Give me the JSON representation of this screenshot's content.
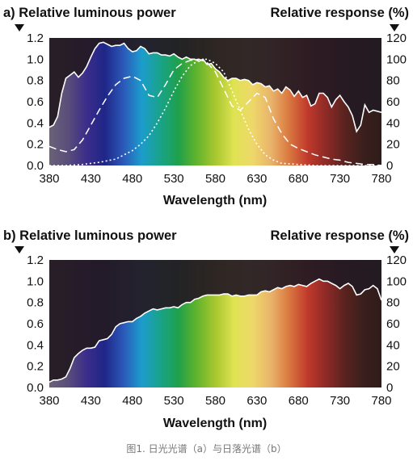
{
  "caption": "图1. 日光光谱（a）与日落光谱（b）",
  "colors": {
    "spectrum": [
      "#6b6278",
      "#5a4e7a",
      "#3c2d8a",
      "#1f2688",
      "#2b58b8",
      "#1c9ccd",
      "#19a38a",
      "#1fa04a",
      "#62b42c",
      "#a8c730",
      "#dfe352",
      "#eed86a",
      "#e9b46a",
      "#d97840",
      "#c0392b",
      "#8e2a27",
      "#5a231f",
      "#3a1f1c",
      "#2e1c1a"
    ],
    "fill_dark": "#231a22",
    "line": "#ffffff"
  },
  "chart_data": [
    {
      "type": "area",
      "panel_label": "a)",
      "title_left": "Relative luminous power",
      "title_right": "Relative response (%)",
      "xlabel": "Wavelength (nm)",
      "xlim": [
        380,
        780
      ],
      "xticks": [
        "380",
        "430",
        "480",
        "530",
        "580",
        "630",
        "680",
        "730",
        "780"
      ],
      "ylim": [
        0,
        1.2
      ],
      "yticks": [
        "0.0",
        "0.2",
        "0.4",
        "0.6",
        "0.8",
        "1.0",
        "1.2"
      ],
      "y2lim": [
        0,
        120
      ],
      "y2ticks": [
        "0",
        "20",
        "40",
        "60",
        "80",
        "100",
        "120"
      ],
      "series": [
        {
          "role": "luminous_power",
          "x": [
            380,
            385,
            390,
            395,
            400,
            405,
            410,
            415,
            420,
            425,
            430,
            435,
            440,
            445,
            450,
            455,
            460,
            465,
            470,
            475,
            480,
            485,
            490,
            495,
            500,
            505,
            510,
            515,
            520,
            525,
            530,
            535,
            540,
            545,
            550,
            555,
            560,
            565,
            570,
            575,
            580,
            585,
            590,
            595,
            600,
            605,
            610,
            615,
            620,
            625,
            630,
            635,
            640,
            645,
            650,
            655,
            660,
            665,
            670,
            675,
            680,
            685,
            690,
            695,
            700,
            705,
            710,
            715,
            720,
            725,
            730,
            735,
            740,
            745,
            750,
            755,
            760,
            765,
            770,
            775,
            780
          ],
          "y": [
            0.36,
            0.38,
            0.46,
            0.68,
            0.82,
            0.85,
            0.88,
            0.83,
            0.87,
            0.93,
            1.02,
            1.1,
            1.15,
            1.16,
            1.14,
            1.12,
            1.13,
            1.13,
            1.15,
            1.1,
            1.07,
            1.08,
            1.12,
            1.1,
            1.05,
            1.06,
            1.06,
            1.04,
            1.04,
            1.03,
            1.05,
            1.02,
            1.0,
            1.02,
            1.0,
            1.0,
            0.98,
            1.0,
            0.95,
            0.96,
            0.91,
            0.88,
            0.83,
            0.8,
            0.82,
            0.82,
            0.8,
            0.81,
            0.8,
            0.76,
            0.78,
            0.77,
            0.74,
            0.75,
            0.7,
            0.72,
            0.68,
            0.74,
            0.71,
            0.65,
            0.7,
            0.64,
            0.66,
            0.56,
            0.58,
            0.68,
            0.68,
            0.64,
            0.55,
            0.62,
            0.66,
            0.6,
            0.55,
            0.47,
            0.32,
            0.38,
            0.57,
            0.5,
            0.52,
            0.51,
            0.5
          ]
        },
        {
          "role": "response_dashed",
          "x": [
            380,
            390,
            400,
            410,
            420,
            430,
            440,
            450,
            460,
            470,
            480,
            490,
            500,
            510,
            520,
            530,
            540,
            550,
            560,
            570,
            580,
            590,
            600,
            610,
            620,
            630,
            640,
            650,
            660,
            670,
            680,
            690,
            700,
            710,
            720,
            730,
            740,
            750,
            760,
            770,
            780
          ],
          "y": [
            18,
            15,
            13,
            15,
            24,
            38,
            52,
            65,
            76,
            82,
            84,
            80,
            66,
            64,
            76,
            90,
            96,
            99,
            100,
            97,
            88,
            72,
            56,
            52,
            60,
            68,
            64,
            44,
            30,
            20,
            16,
            13,
            10,
            8,
            6,
            5,
            3,
            2,
            1,
            1,
            0
          ]
        },
        {
          "role": "response_dotted",
          "x": [
            380,
            400,
            420,
            440,
            460,
            470,
            480,
            490,
            500,
            510,
            520,
            530,
            540,
            550,
            560,
            570,
            580,
            590,
            600,
            610,
            620,
            630,
            640,
            650,
            660,
            680,
            700,
            780
          ],
          "y": [
            0,
            0,
            1,
            3,
            6,
            10,
            14,
            20,
            28,
            40,
            54,
            70,
            84,
            94,
            99,
            100,
            96,
            88,
            70,
            52,
            34,
            20,
            10,
            5,
            2,
            1,
            0,
            0
          ]
        }
      ]
    },
    {
      "type": "area",
      "panel_label": "b)",
      "title_left": "Relative luminous power",
      "title_right": "Relative response (%)",
      "xlabel": "Wavelength (nm)",
      "xlim": [
        380,
        780
      ],
      "xticks": [
        "380",
        "430",
        "480",
        "530",
        "580",
        "630",
        "680",
        "730",
        "780"
      ],
      "ylim": [
        0,
        1.2
      ],
      "yticks": [
        "0.0",
        "0.2",
        "0.4",
        "0.6",
        "0.8",
        "1.0",
        "1.2"
      ],
      "y2lim": [
        0,
        120
      ],
      "y2ticks": [
        "0",
        "20",
        "40",
        "60",
        "80",
        "100",
        "120"
      ],
      "series": [
        {
          "role": "luminous_power",
          "x": [
            380,
            385,
            390,
            395,
            400,
            405,
            410,
            415,
            420,
            425,
            430,
            435,
            440,
            445,
            450,
            455,
            460,
            465,
            470,
            475,
            480,
            485,
            490,
            495,
            500,
            505,
            510,
            515,
            520,
            525,
            530,
            535,
            540,
            545,
            550,
            555,
            560,
            565,
            570,
            575,
            580,
            585,
            590,
            595,
            600,
            605,
            610,
            615,
            620,
            625,
            630,
            635,
            640,
            645,
            650,
            655,
            660,
            665,
            670,
            675,
            680,
            685,
            690,
            695,
            700,
            705,
            710,
            715,
            720,
            725,
            730,
            735,
            740,
            745,
            750,
            755,
            760,
            765,
            770,
            775,
            780
          ],
          "y": [
            0.05,
            0.07,
            0.07,
            0.08,
            0.1,
            0.18,
            0.28,
            0.32,
            0.35,
            0.37,
            0.37,
            0.38,
            0.44,
            0.45,
            0.46,
            0.5,
            0.57,
            0.6,
            0.61,
            0.62,
            0.62,
            0.65,
            0.67,
            0.7,
            0.72,
            0.74,
            0.73,
            0.74,
            0.75,
            0.75,
            0.76,
            0.75,
            0.78,
            0.8,
            0.8,
            0.83,
            0.84,
            0.86,
            0.87,
            0.87,
            0.87,
            0.87,
            0.88,
            0.88,
            0.86,
            0.87,
            0.86,
            0.86,
            0.87,
            0.87,
            0.87,
            0.9,
            0.91,
            0.9,
            0.92,
            0.94,
            0.93,
            0.95,
            0.96,
            0.95,
            0.97,
            0.96,
            0.95,
            0.98,
            1.0,
            1.02,
            1.0,
            1.0,
            0.98,
            0.96,
            0.93,
            0.96,
            0.98,
            0.95,
            0.87,
            0.88,
            0.92,
            0.93,
            0.96,
            0.93,
            0.82
          ]
        }
      ]
    }
  ]
}
